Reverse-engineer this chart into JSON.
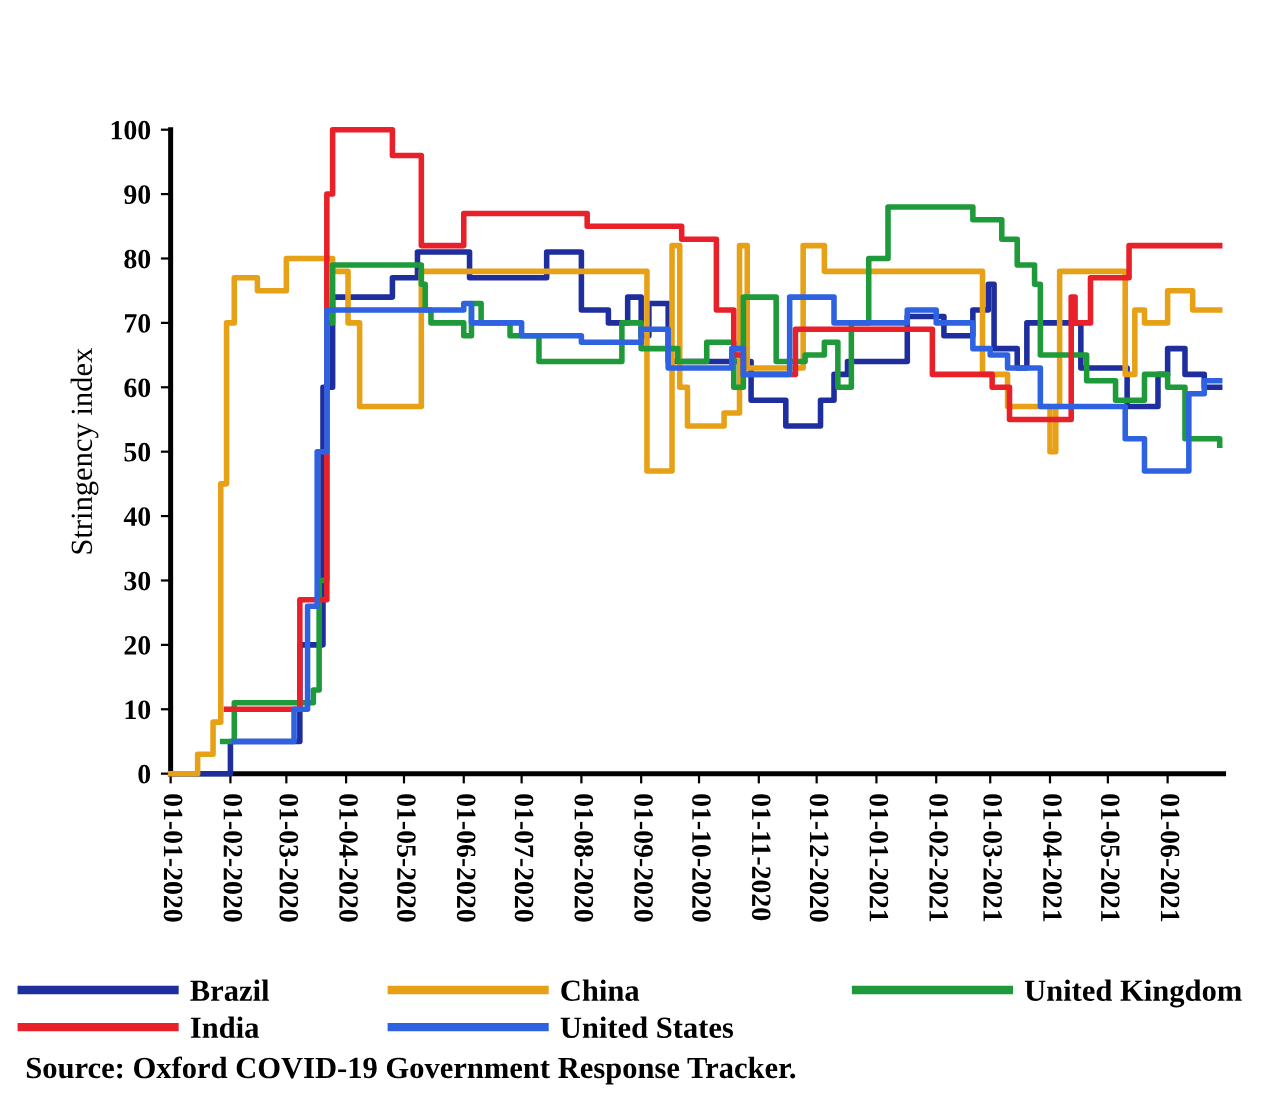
{
  "chart_data": {
    "type": "step",
    "ylabel": "Stringency index",
    "xlim": [
      "2020-01-01",
      "2021-06-30"
    ],
    "xticks": [
      {
        "value": "2020-01-01",
        "label": "01-01-2020"
      },
      {
        "value": "2020-02-01",
        "label": "01-02-2020"
      },
      {
        "value": "2020-03-01",
        "label": "01-03-2020"
      },
      {
        "value": "2020-04-01",
        "label": "01-04-2020"
      },
      {
        "value": "2020-05-01",
        "label": "01-05-2020"
      },
      {
        "value": "2020-06-01",
        "label": "01-06-2020"
      },
      {
        "value": "2020-07-01",
        "label": "01-07-2020"
      },
      {
        "value": "2020-08-01",
        "label": "01-08-2020"
      },
      {
        "value": "2020-09-01",
        "label": "01-09-2020"
      },
      {
        "value": "2020-10-01",
        "label": "01-10-2020"
      },
      {
        "value": "2020-11-01",
        "label": "01-11-2020"
      },
      {
        "value": "2020-12-01",
        "label": "01-12-2020"
      },
      {
        "value": "2021-01-01",
        "label": "01-01-2021"
      },
      {
        "value": "2021-02-01",
        "label": "01-02-2021"
      },
      {
        "value": "2021-03-01",
        "label": "01-03-2021"
      },
      {
        "value": "2021-04-01",
        "label": "01-04-2021"
      },
      {
        "value": "2021-05-01",
        "label": "01-05-2021"
      },
      {
        "value": "2021-06-01",
        "label": "01-06-2021"
      }
    ],
    "ylim": [
      0,
      100
    ],
    "yticks": [
      0,
      10,
      20,
      30,
      40,
      50,
      60,
      70,
      80,
      90,
      100
    ],
    "grid": false,
    "legend": "bottom",
    "marker": "none",
    "line_style": "solid",
    "annotations": [
      "Source: Oxford COVID-19 Government Response Tracker."
    ],
    "series": [
      {
        "name": "Brazil",
        "color": "#1f2e9e",
        "x": [
          "2020-01-01",
          "2020-02-01",
          "2020-03-01",
          "2020-03-08",
          "2020-03-20",
          "2020-03-25",
          "2020-04-20",
          "2020-04-25",
          "2020-05-08",
          "2020-06-04",
          "2020-07-14",
          "2020-08-01",
          "2020-08-15",
          "2020-08-25",
          "2020-09-01",
          "2020-09-05",
          "2020-09-15",
          "2020-10-28",
          "2020-11-15",
          "2020-12-03",
          "2020-12-10",
          "2020-12-17",
          "2021-01-17",
          "2021-02-05",
          "2021-02-20",
          "2021-02-28",
          "2021-03-03",
          "2021-03-15",
          "2021-03-20",
          "2021-04-17",
          "2021-05-11",
          "2021-05-27",
          "2021-06-01",
          "2021-06-10",
          "2021-06-20",
          "2021-06-28"
        ],
        "values": [
          0,
          5,
          5,
          20,
          60,
          74,
          74,
          77,
          81,
          77,
          81,
          72,
          70,
          74,
          68,
          73,
          64,
          58,
          54,
          58,
          62,
          64,
          71,
          68,
          72,
          76,
          66,
          63,
          70,
          63,
          57,
          62,
          66,
          62,
          60,
          60
        ]
      },
      {
        "name": "China",
        "color": "#e6a117",
        "x": [
          "2020-01-01",
          "2020-01-15",
          "2020-01-23",
          "2020-01-27",
          "2020-01-30",
          "2020-02-03",
          "2020-02-15",
          "2020-03-01",
          "2020-03-25",
          "2020-04-02",
          "2020-04-08",
          "2020-05-10",
          "2020-09-04",
          "2020-09-17",
          "2020-09-21",
          "2020-09-25",
          "2020-10-14",
          "2020-10-22",
          "2020-10-26",
          "2020-11-24",
          "2020-12-05",
          "2021-02-25",
          "2021-03-10",
          "2021-04-01",
          "2021-04-04",
          "2021-04-06",
          "2021-05-10",
          "2021-05-15",
          "2021-05-20",
          "2021-06-01",
          "2021-06-14",
          "2021-06-28"
        ],
        "values": [
          0,
          3,
          8,
          45,
          70,
          77,
          75,
          80,
          78,
          70,
          57,
          78,
          47,
          82,
          60,
          54,
          56,
          82,
          63,
          82,
          78,
          62,
          57,
          50,
          57,
          78,
          62,
          72,
          70,
          75,
          72,
          72
        ]
      },
      {
        "name": "United Kingdom",
        "color": "#1e9a3a",
        "x": [
          "2020-01-28",
          "2020-02-03",
          "2020-03-15",
          "2020-03-18",
          "2020-03-22",
          "2020-03-25",
          "2020-05-10",
          "2020-05-12",
          "2020-05-15",
          "2020-06-01",
          "2020-06-05",
          "2020-06-10",
          "2020-06-25",
          "2020-07-10",
          "2020-07-25",
          "2020-08-22",
          "2020-09-01",
          "2020-09-20",
          "2020-10-05",
          "2020-10-19",
          "2020-10-24",
          "2020-11-10",
          "2020-11-25",
          "2020-12-05",
          "2020-12-12",
          "2020-12-19",
          "2020-12-28",
          "2021-01-07",
          "2021-02-20",
          "2021-03-07",
          "2021-03-15",
          "2021-03-24",
          "2021-03-27",
          "2021-04-20",
          "2021-05-05",
          "2021-05-20",
          "2021-06-01",
          "2021-06-10",
          "2021-06-28"
        ],
        "values": [
          5,
          11,
          13,
          30,
          70,
          79,
          76,
          72,
          70,
          68,
          73,
          70,
          68,
          64,
          64,
          70,
          66,
          64,
          67,
          60,
          74,
          64,
          65,
          67,
          60,
          70,
          80,
          88,
          86,
          83,
          79,
          76,
          65,
          61,
          58,
          62,
          60,
          52,
          51
        ]
      },
      {
        "name": "India",
        "color": "#e8202a",
        "x": [
          "2020-01-30",
          "2020-03-08",
          "2020-03-18",
          "2020-03-22",
          "2020-03-25",
          "2020-04-20",
          "2020-04-25",
          "2020-05-10",
          "2020-06-01",
          "2020-08-04",
          "2020-09-22",
          "2020-10-10",
          "2020-10-19",
          "2020-10-24",
          "2020-11-20",
          "2021-01-30",
          "2021-03-02",
          "2021-03-11",
          "2021-04-10",
          "2021-04-12",
          "2021-04-14",
          "2021-04-22",
          "2021-05-12",
          "2021-06-28"
        ],
        "values": [
          10,
          27,
          27,
          90,
          100,
          100,
          96,
          82,
          87,
          85,
          83,
          72,
          65,
          62,
          69,
          62,
          60,
          55,
          55,
          74,
          70,
          77,
          82,
          82
        ]
      },
      {
        "name": "United States",
        "color": "#2f62e0",
        "x": [
          "2020-02-03",
          "2020-03-05",
          "2020-03-12",
          "2020-03-17",
          "2020-03-22",
          "2020-06-01",
          "2020-06-05",
          "2020-07-01",
          "2020-08-01",
          "2020-09-01",
          "2020-09-15",
          "2020-10-18",
          "2020-10-24",
          "2020-11-17",
          "2020-12-10",
          "2021-01-17",
          "2021-02-01",
          "2021-02-20",
          "2021-03-01",
          "2021-03-10",
          "2021-03-27",
          "2021-05-10",
          "2021-05-20",
          "2021-06-12",
          "2021-06-20",
          "2021-06-28"
        ],
        "values": [
          5,
          10,
          26,
          50,
          72,
          73,
          70,
          68,
          67,
          69,
          63,
          66,
          62,
          74,
          70,
          72,
          70,
          66,
          65,
          63,
          57,
          52,
          47,
          59,
          61,
          61
        ]
      }
    ]
  }
}
